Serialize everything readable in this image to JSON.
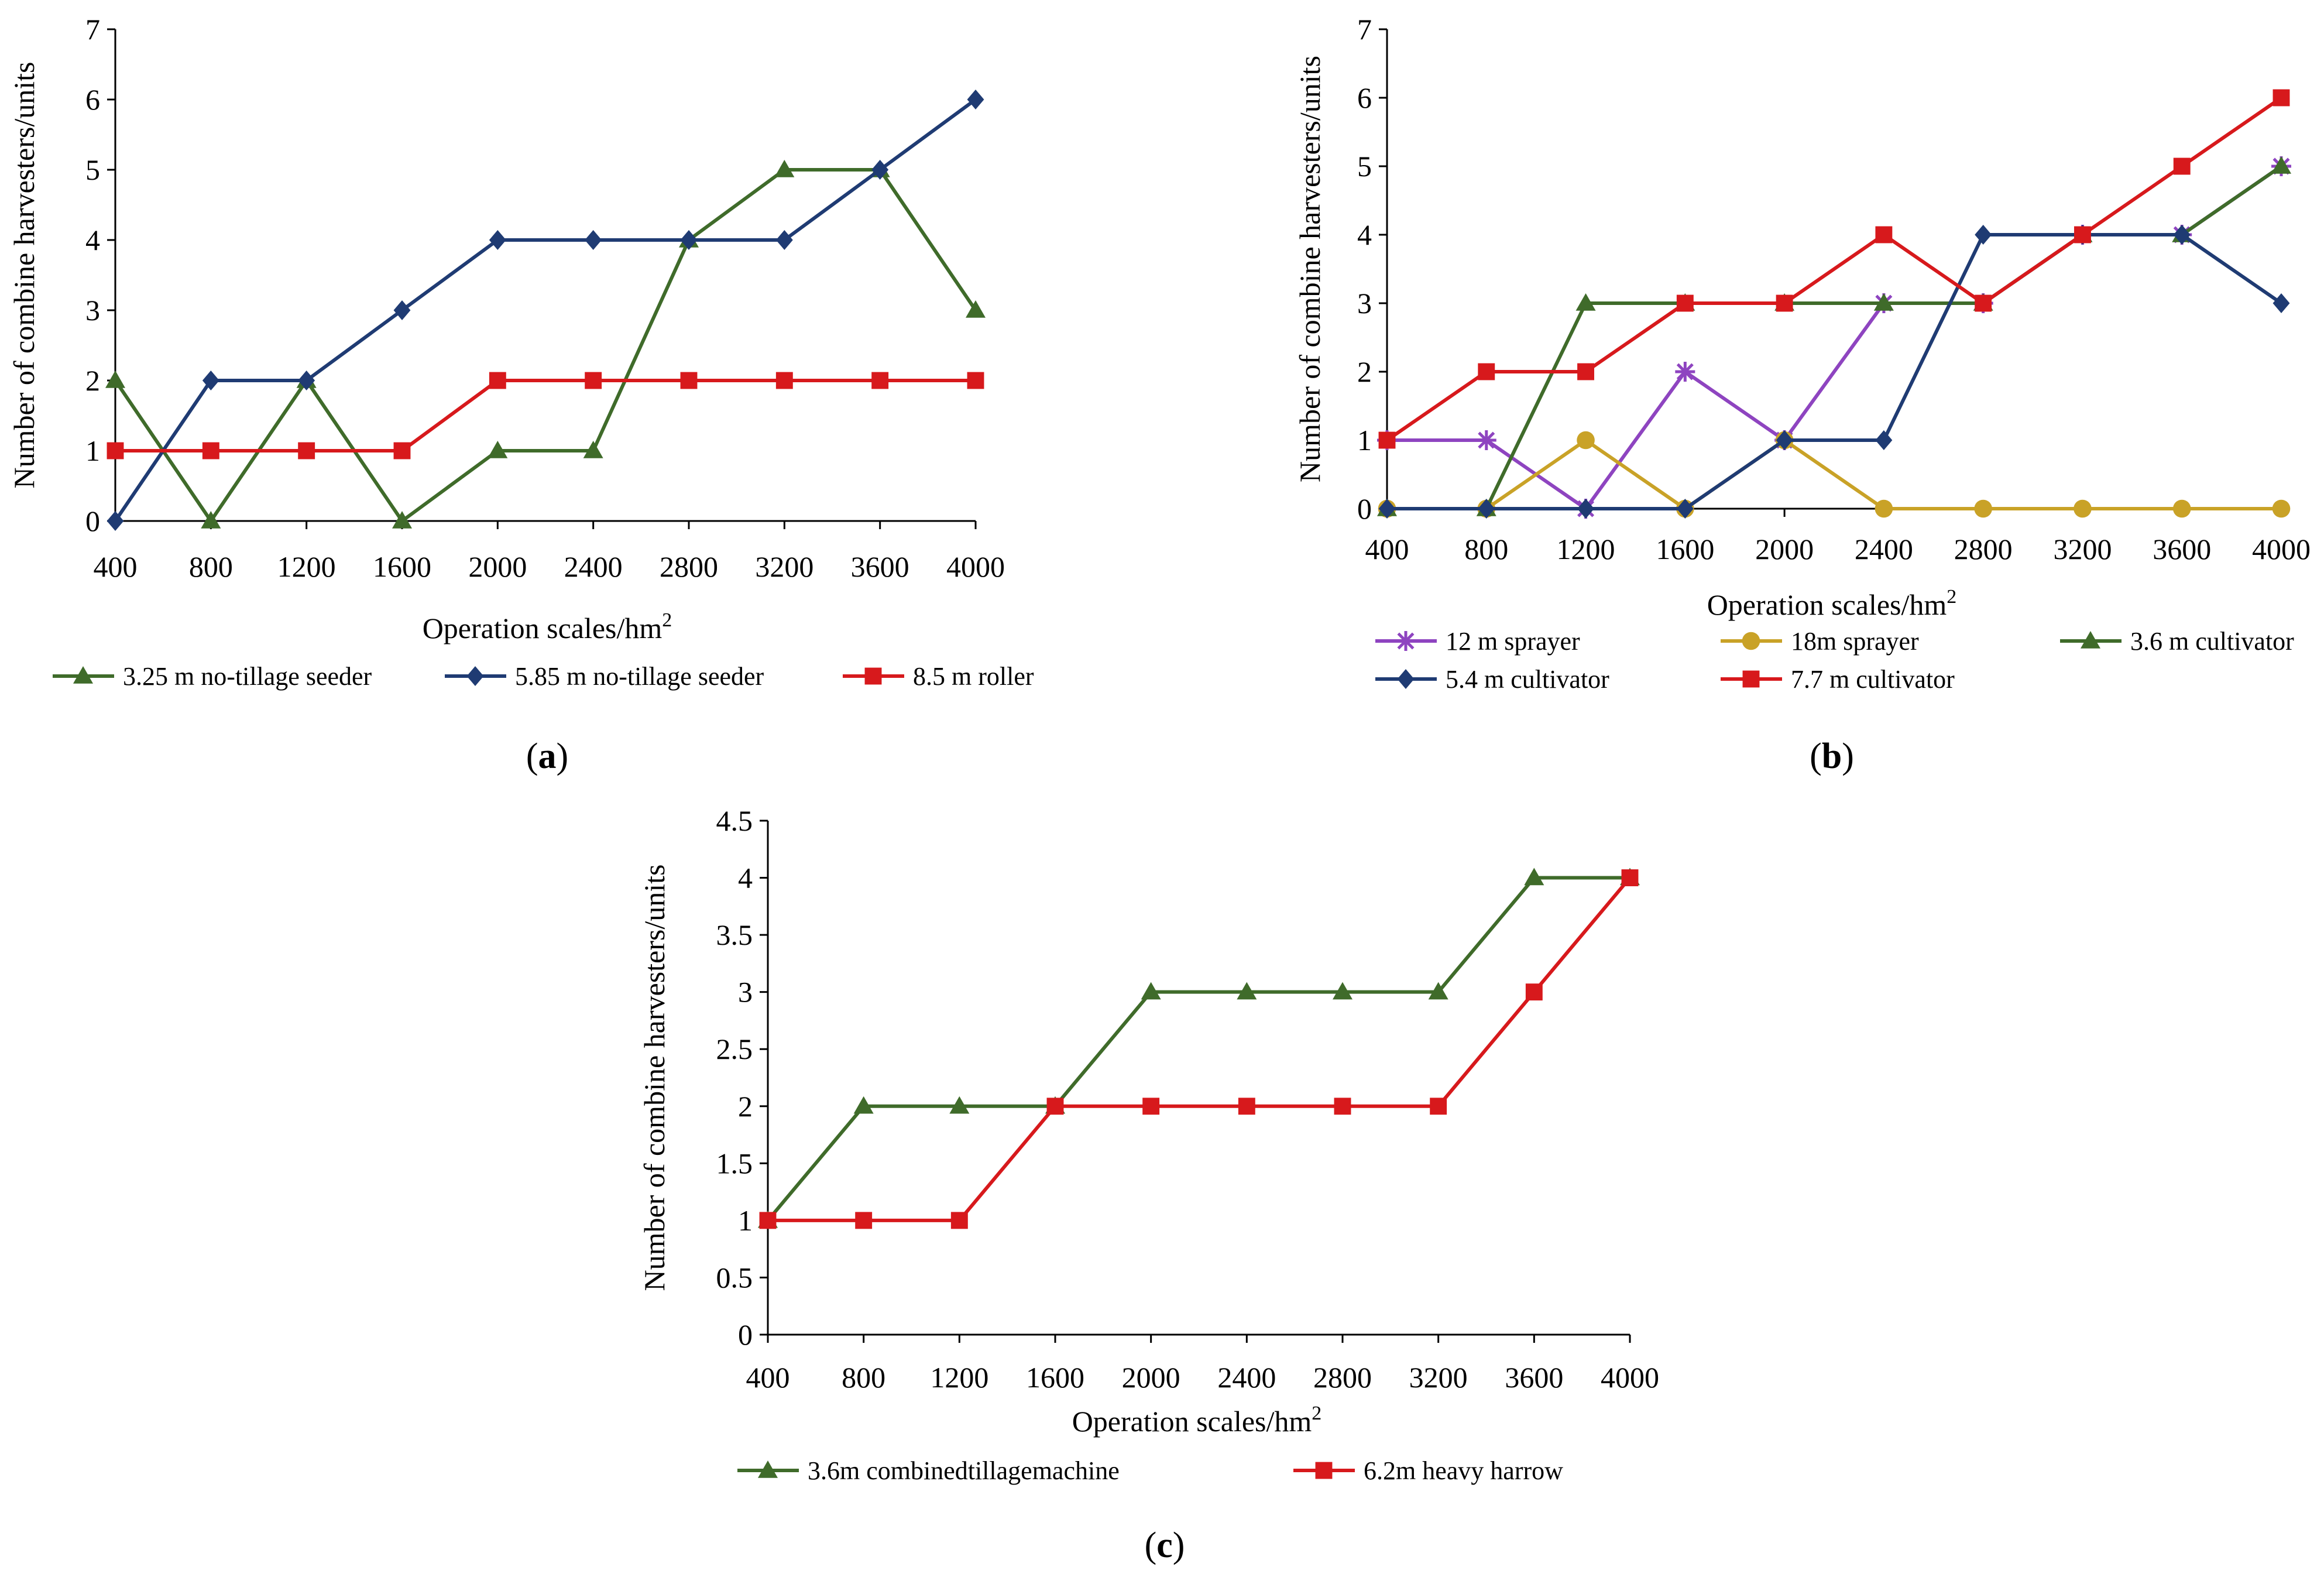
{
  "chart_data": [
    {
      "id": "a",
      "type": "line",
      "caption_letter": "a",
      "xlabel": "Operation scales/hm",
      "xlabel_sup": "2",
      "ylabel": "Number of combine harvesters/units",
      "categories": [
        "400",
        "800",
        "1200",
        "1600",
        "2000",
        "2400",
        "2800",
        "3200",
        "3600",
        "4000"
      ],
      "ylim": [
        0,
        7
      ],
      "yticks": [
        0,
        1,
        2,
        3,
        4,
        5,
        6,
        7
      ],
      "legend_position": "bottom",
      "series": [
        {
          "name": "3.25 m no-tillage seeder",
          "color": "#3F6B2A",
          "marker": "triangle",
          "values": [
            2,
            0,
            2,
            0,
            1,
            1,
            4,
            5,
            5,
            3
          ]
        },
        {
          "name": "5.85 m no-tillage seeder",
          "color": "#1F3B73",
          "marker": "diamond",
          "values": [
            0,
            2,
            2,
            3,
            4,
            4,
            4,
            4,
            5,
            6
          ]
        },
        {
          "name": "8.5 m roller",
          "color": "#D7191C",
          "marker": "square",
          "values": [
            1,
            1,
            1,
            1,
            2,
            2,
            2,
            2,
            2,
            2
          ]
        }
      ]
    },
    {
      "id": "b",
      "type": "line",
      "caption_letter": "b",
      "xlabel": "Operation scales/hm",
      "xlabel_sup": "2",
      "ylabel": "Number of combine harvesters/units",
      "categories": [
        "400",
        "800",
        "1200",
        "1600",
        "2000",
        "2400",
        "2800",
        "3200",
        "3600",
        "4000"
      ],
      "ylim": [
        0,
        7
      ],
      "yticks": [
        0,
        1,
        2,
        3,
        4,
        5,
        6,
        7
      ],
      "legend_position": "bottom",
      "series": [
        {
          "name": "12 m sprayer",
          "color": "#8E44C0",
          "marker": "star",
          "values": [
            1,
            1,
            0,
            2,
            1,
            3,
            3,
            4,
            4,
            5
          ]
        },
        {
          "name": "18m sprayer",
          "color": "#C9A227",
          "marker": "circle",
          "values": [
            0,
            0,
            1,
            0,
            1,
            0,
            0,
            0,
            0,
            0
          ]
        },
        {
          "name": "3.6 m cultivator",
          "color": "#3F6B2A",
          "marker": "triangle",
          "values": [
            0,
            0,
            3,
            3,
            3,
            3,
            3,
            4,
            4,
            5
          ]
        },
        {
          "name": "5.4 m cultivator",
          "color": "#1F3B73",
          "marker": "diamond",
          "values": [
            0,
            0,
            0,
            0,
            1,
            1,
            4,
            4,
            4,
            3
          ]
        },
        {
          "name": "7.7 m cultivator",
          "color": "#D7191C",
          "marker": "square",
          "values": [
            1,
            2,
            2,
            3,
            3,
            4,
            3,
            4,
            5,
            6
          ]
        }
      ]
    },
    {
      "id": "c",
      "type": "line",
      "caption_letter": "c",
      "xlabel": "Operation scales/hm",
      "xlabel_sup": "2",
      "ylabel": "Number of combine harvesters/units",
      "categories": [
        "400",
        "800",
        "1200",
        "1600",
        "2000",
        "2400",
        "2800",
        "3200",
        "3600",
        "4000"
      ],
      "ylim": [
        0,
        4.5
      ],
      "yticks": [
        0,
        0.5,
        1,
        1.5,
        2,
        2.5,
        3,
        3.5,
        4,
        4.5
      ],
      "legend_position": "bottom",
      "series": [
        {
          "name": "3.6m combinedtillagemachine",
          "color": "#3F6B2A",
          "marker": "triangle",
          "values": [
            1,
            2,
            2,
            2,
            3,
            3,
            3,
            3,
            4,
            4
          ]
        },
        {
          "name": "6.2m heavy harrow",
          "color": "#D7191C",
          "marker": "square",
          "values": [
            1,
            1,
            1,
            2,
            2,
            2,
            2,
            2,
            3,
            4
          ]
        }
      ]
    }
  ]
}
